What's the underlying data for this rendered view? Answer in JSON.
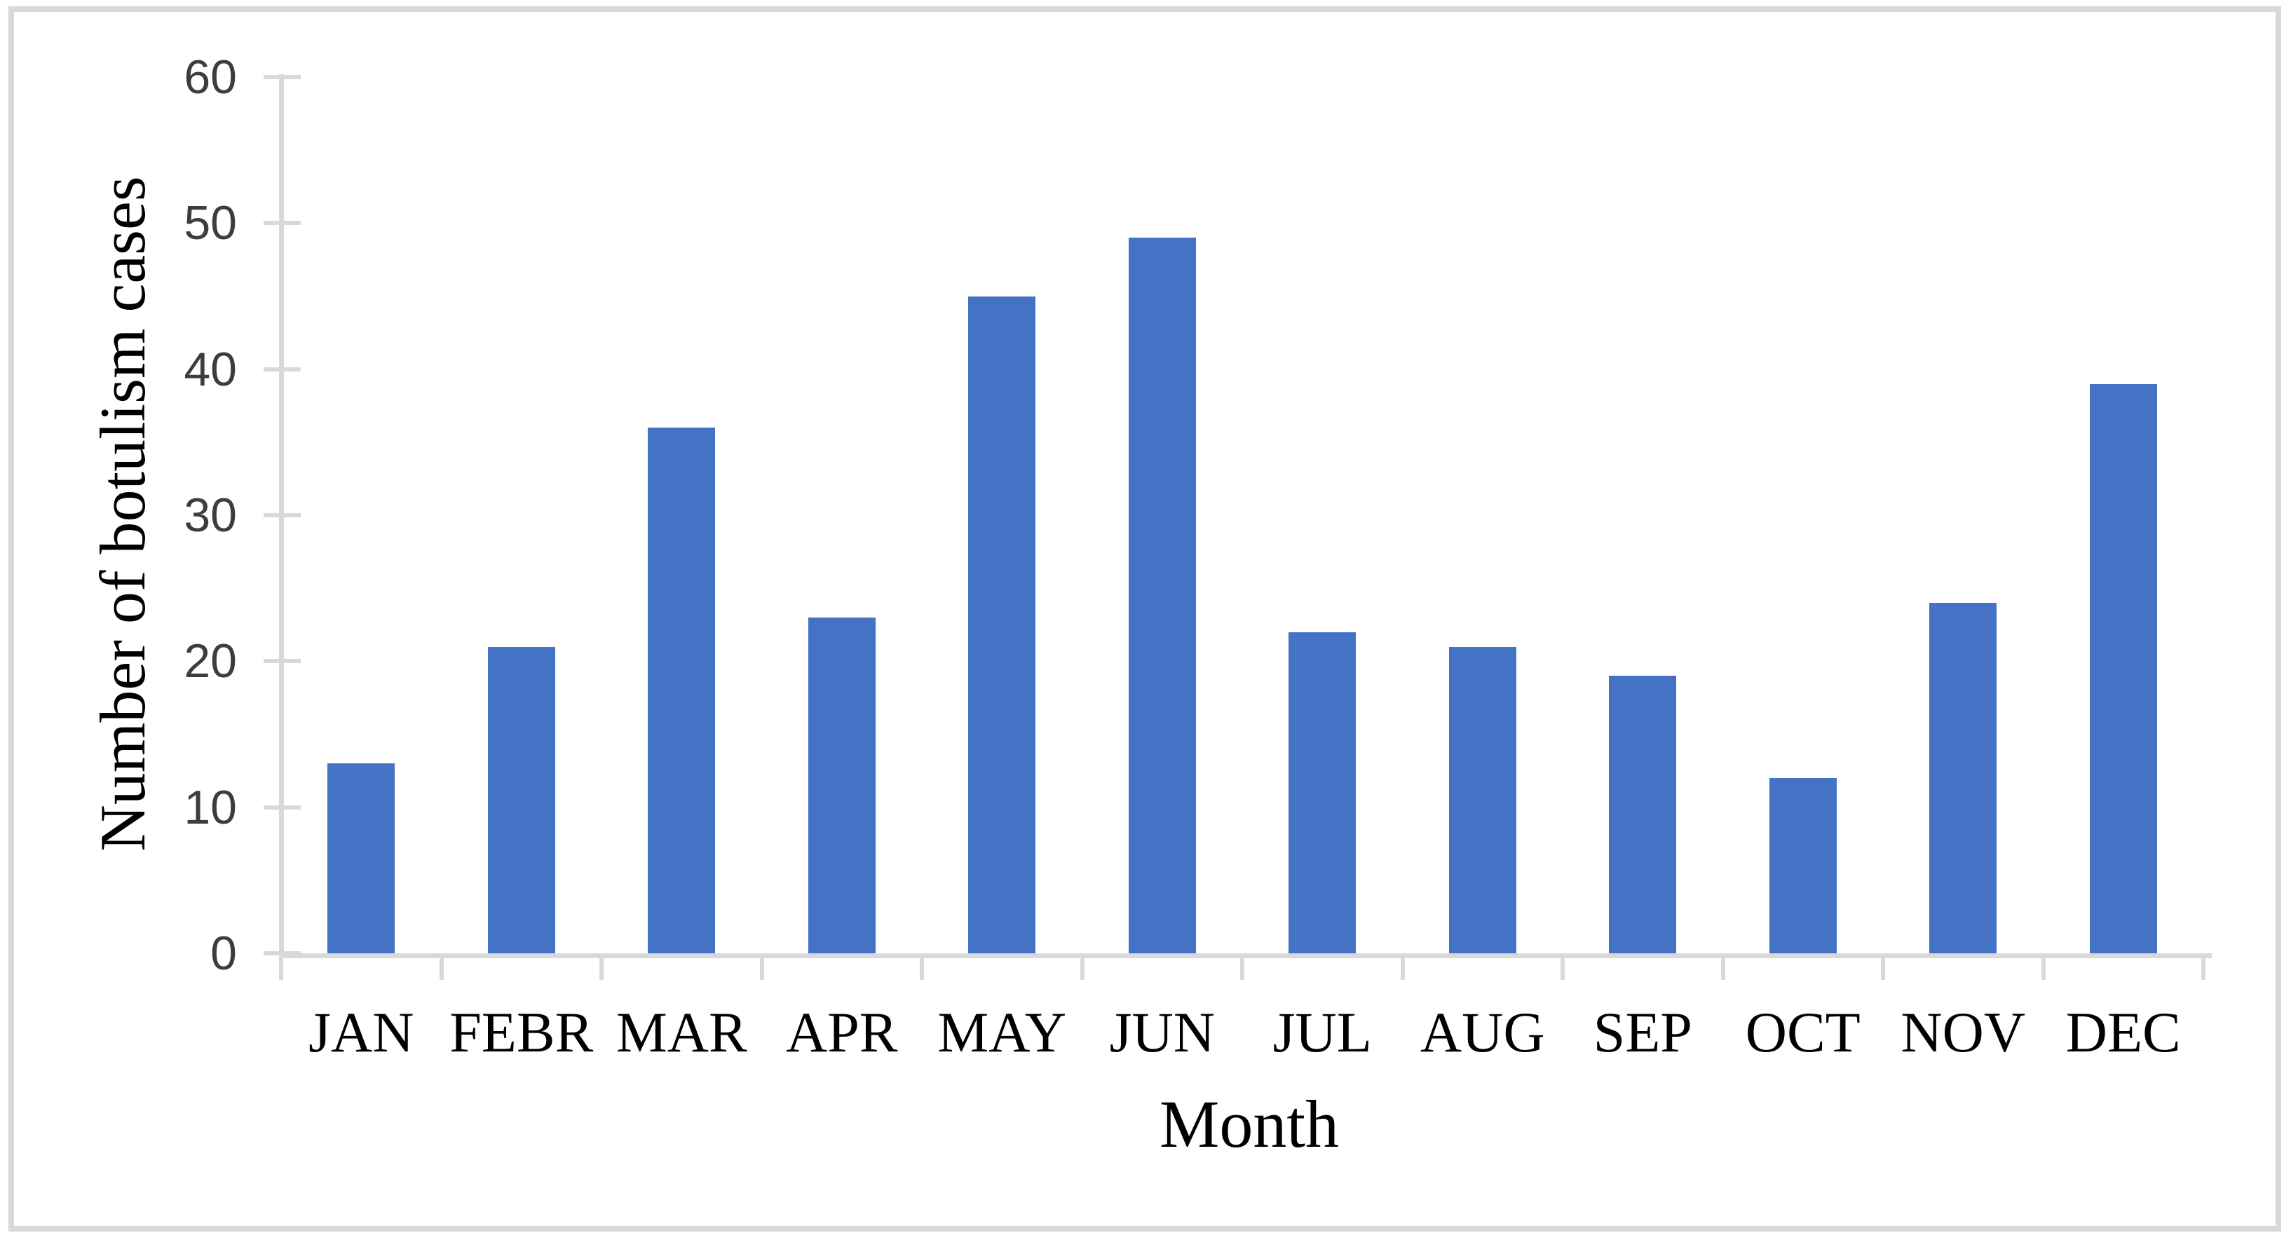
{
  "chart_data": {
    "type": "bar",
    "title": "",
    "categories": [
      "JAN",
      "FEBR",
      "MAR",
      "APR",
      "MAY",
      "JUN",
      "JUL",
      "AUG",
      "SEP",
      "OCT",
      "NOV",
      "DEC"
    ],
    "values": [
      13,
      21,
      36,
      23,
      45,
      49,
      22,
      21,
      19,
      12,
      24,
      39
    ],
    "xlabel": "Month",
    "ylabel": "Number of botulism cases",
    "ylim": [
      0,
      60
    ],
    "yticks": [
      0,
      10,
      20,
      30,
      40,
      50,
      60
    ],
    "grid": false,
    "legend": null,
    "layout_hints": {
      "bar_gap": "bars centered in category slots",
      "tick_style": "outside light-gray ticks on both axes",
      "frame": "light-gray rectangular border around whole figure"
    },
    "colors": {
      "bar": "#4472C4",
      "axis": "#D9D9D9",
      "frame_border": "#D9D9D9",
      "tick_label": "#3D3D3D",
      "text": "#000000",
      "background": "#FFFFFF"
    }
  }
}
